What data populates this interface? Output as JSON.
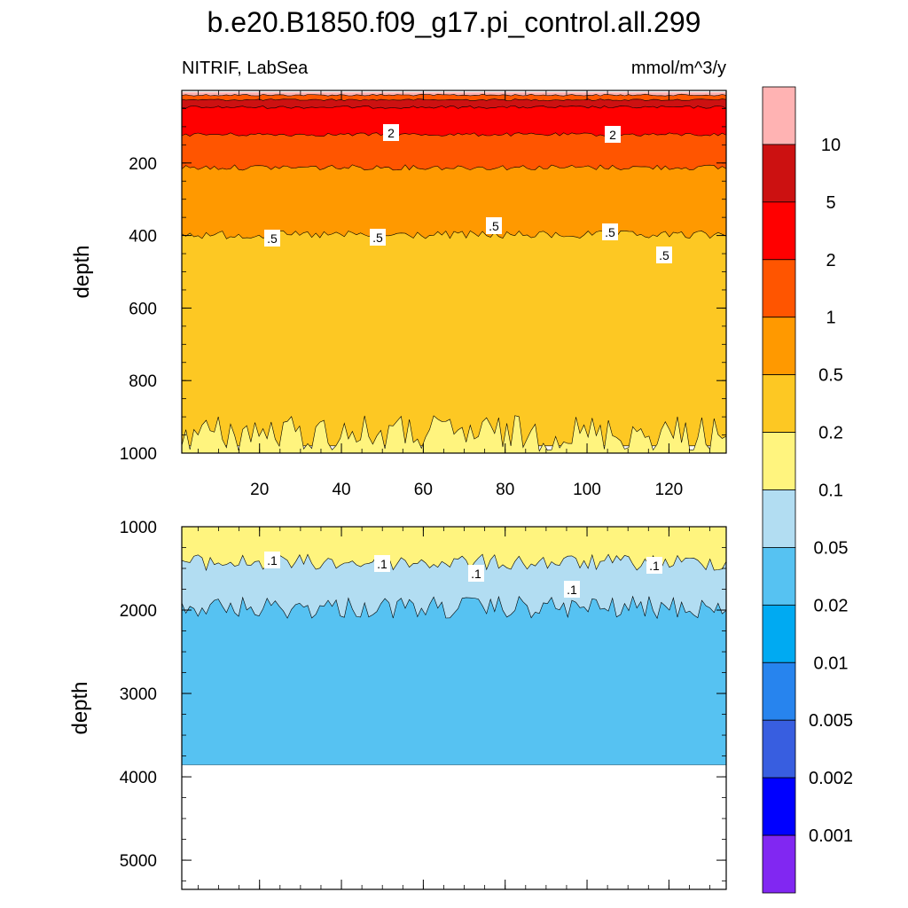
{
  "chart_data": {
    "type": "contour",
    "title": "b.e20.B1850.f09_g17.pi_control.all.299",
    "variable_label": "NITRIF, LabSea",
    "units_label": "mmol/m^3/y",
    "x": {
      "min": 1,
      "max": 134,
      "ticks": [
        20,
        40,
        60,
        80,
        100,
        120
      ],
      "tick_labels": [
        "20",
        "40",
        "60",
        "80",
        "100",
        "120"
      ]
    },
    "panels": [
      {
        "name": "upper",
        "ylabel": "depth",
        "y_range": [
          0,
          1000
        ],
        "yticks": [
          200,
          400,
          600,
          800,
          1000
        ],
        "ytick_labels": [
          "200",
          "400",
          "600",
          "800",
          "1000"
        ],
        "bands": [
          {
            "upper_depth": 5,
            "lower_depth": 12,
            "color": "#FFB3B3",
            "label": ">10"
          },
          {
            "upper_depth": 12,
            "lower_depth": 25,
            "color": "#FF5500",
            "label": "1-2"
          },
          {
            "upper_depth": 25,
            "lower_depth": 45,
            "color": "#CC1111",
            "label": "5-10"
          },
          {
            "upper_depth": 45,
            "lower_depth": 120,
            "color": "#FF0000",
            "label": "2-5"
          },
          {
            "upper_depth": 120,
            "lower_depth": 210,
            "color": "#FF5500",
            "label": "1-2"
          },
          {
            "upper_depth": 210,
            "lower_depth": 395,
            "color": "#FF9900",
            "label": "0.5-1"
          },
          {
            "upper_depth": 395,
            "lower_depth": 930,
            "color": "#FDC823",
            "label": "0.2-0.5"
          },
          {
            "upper_depth": 930,
            "lower_depth": 1000,
            "color": "#FFF47E",
            "label": "0.1-0.2"
          }
        ],
        "contour_labels": [
          "2",
          "2",
          ".5",
          ".5",
          ".5",
          ".5",
          ".5"
        ]
      },
      {
        "name": "lower",
        "ylabel": "depth",
        "y_range": [
          1000,
          5350
        ],
        "yticks": [
          1000,
          2000,
          3000,
          4000,
          5000
        ],
        "ytick_labels": [
          "1000",
          "2000",
          "3000",
          "4000",
          "5000"
        ],
        "bands": [
          {
            "upper_depth": 1000,
            "lower_depth": 1400,
            "color": "#FFF47E",
            "label": "0.1-0.2"
          },
          {
            "upper_depth": 1400,
            "lower_depth": 1930,
            "color": "#B2DDF2",
            "label": "0.05-0.1"
          },
          {
            "upper_depth": 1930,
            "lower_depth": 3860,
            "color": "#56C2F2",
            "label": "0.02-0.05"
          }
        ],
        "ocean_floor_depth": 3860,
        "contour_labels": [
          ".1",
          ".1",
          ".1",
          ".1",
          ".1"
        ]
      }
    ],
    "colorbar": {
      "levels": [
        "10",
        "5",
        "2",
        "1",
        "0.5",
        "0.2",
        "0.1",
        "0.05",
        "0.02",
        "0.01",
        "0.005",
        "0.002",
        "0.001"
      ],
      "colors": [
        "#FFB3B3",
        "#CC1111",
        "#FF0000",
        "#FF5500",
        "#FF9900",
        "#FDC823",
        "#FFF47E",
        "#B2DDF2",
        "#56C2F2",
        "#00AAF2",
        "#2784EE",
        "#385EE0",
        "#0000FF",
        "#8127F2"
      ]
    }
  }
}
